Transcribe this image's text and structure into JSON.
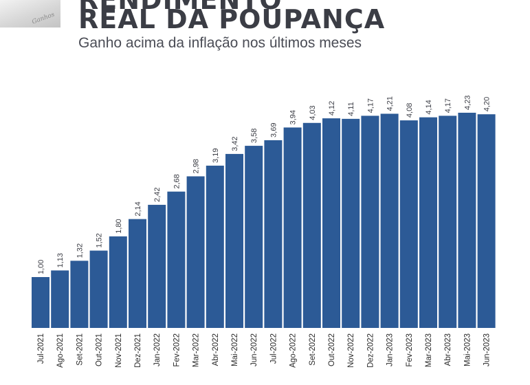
{
  "header": {
    "photo_text": "Ganhos",
    "title_top": "RENDIMENTO",
    "title": "REAL DA POUPANÇA",
    "subtitle": "Ganho acima da inflação nos últimos meses"
  },
  "colors": {
    "bar": "#2c5a96",
    "text": "#3b3d45",
    "axis": "#2a2a2a"
  },
  "chart_data": {
    "type": "bar",
    "title": "REAL DA POUPANÇA",
    "subtitle": "Ganho acima da inflação nos últimos meses",
    "categories": [
      "Jul-2021",
      "Ago-2021",
      "Set-2021",
      "Out-2021",
      "Nov-2021",
      "Dez-2021",
      "Jan-2022",
      "Fev-2022",
      "Mar-2022",
      "Abr-2022",
      "Mai-2022",
      "Jun-2022",
      "Jul-2022",
      "Ago-2022",
      "Set-2022",
      "Out-2022",
      "Nov-2022",
      "Dez-2022",
      "Jan-2023",
      "Fev-2023",
      "Mar-2023",
      "Abr-2023",
      "Mai-2023",
      "Jun-2023"
    ],
    "values": [
      1.0,
      1.13,
      1.32,
      1.52,
      1.8,
      2.14,
      2.42,
      2.68,
      2.98,
      3.19,
      3.42,
      3.58,
      3.69,
      3.94,
      4.03,
      4.12,
      4.11,
      4.17,
      4.21,
      4.08,
      4.14,
      4.17,
      4.23,
      4.2
    ],
    "value_labels": [
      "1,00",
      "1,13",
      "1,32",
      "1,52",
      "1,80",
      "2,14",
      "2,42",
      "2,68",
      "2,98",
      "3,19",
      "3,42",
      "3,58",
      "3,69",
      "3,94",
      "4,03",
      "4,12",
      "4,11",
      "4,17",
      "4,21",
      "4,08",
      "4,14",
      "4,17",
      "4,23",
      "4,20"
    ],
    "xlabel": "",
    "ylabel": "",
    "grid": false,
    "legend": "none"
  }
}
